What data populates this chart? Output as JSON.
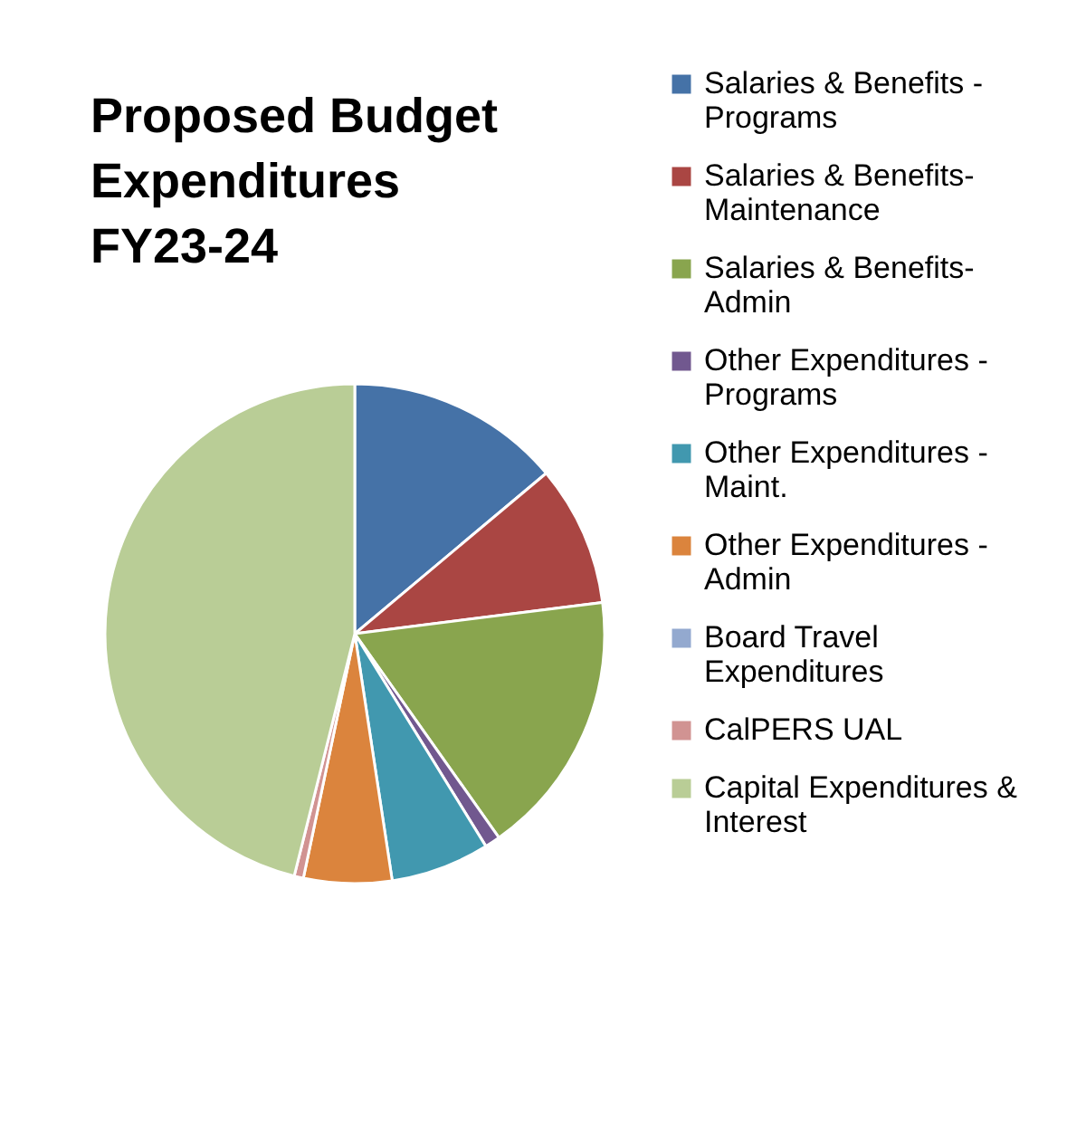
{
  "chart_data": {
    "type": "pie",
    "title": "Proposed Budget Expenditures FY23-24",
    "categories": [
      "Salaries & Benefits - Programs",
      "Salaries & Benefits-Maintenance",
      "Salaries & Benefits-Admin",
      "Other Expenditures - Programs",
      "Other Expenditures - Maint.",
      "Other Expenditures - Admin",
      "Board Travel Expenditures",
      "CalPERS UAL",
      "Capital Expenditures & Interest"
    ],
    "values": [
      13.9,
      9.1,
      17.2,
      1.0,
      6.4,
      5.7,
      null,
      0.6,
      46.1
    ],
    "colors": [
      "#4572a7",
      "#aa4643",
      "#89a54e",
      "#71588f",
      "#4198af",
      "#db843d",
      "#93a9cf",
      "#d19392",
      "#b9cd96"
    ],
    "legend": "right"
  }
}
